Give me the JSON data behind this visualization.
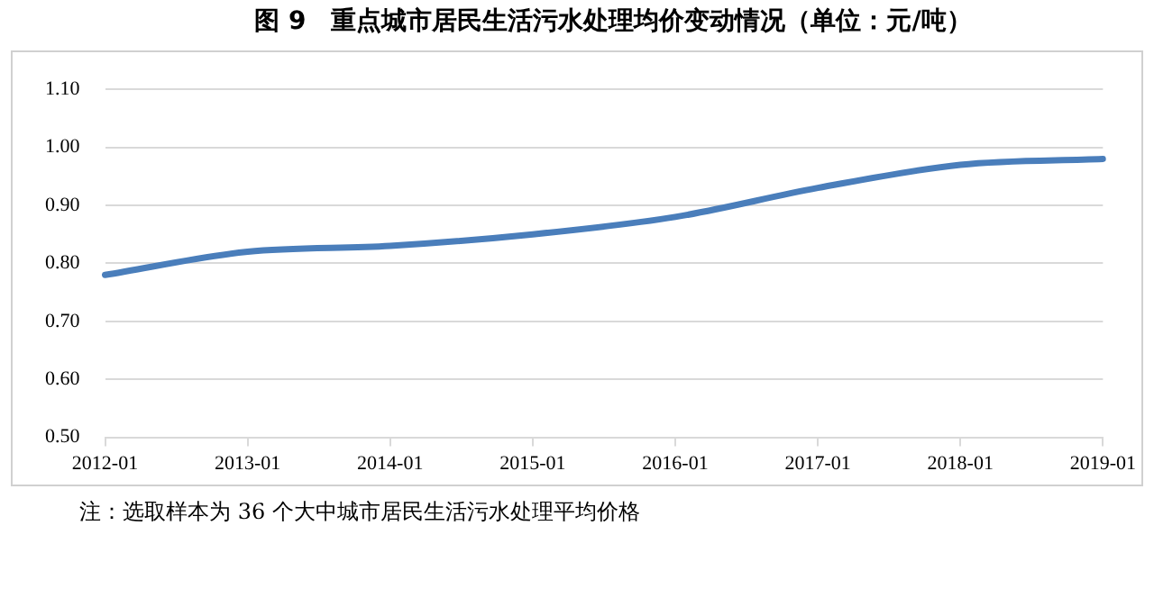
{
  "chart_data": {
    "type": "line",
    "title": "图 9　重点城市居民生活污水处理均价变动情况（单位：元/吨）",
    "categories": [
      "2012-01",
      "2013-01",
      "2014-01",
      "2015-01",
      "2016-01",
      "2017-01",
      "2018-01",
      "2019-01"
    ],
    "series": [
      {
        "color": "#4a7ebb",
        "values": [
          0.78,
          0.82,
          0.83,
          0.85,
          0.88,
          0.93,
          0.97,
          0.98
        ]
      }
    ],
    "ylim": [
      0.5,
      1.1
    ],
    "yticks": [
      {
        "value": 0.5,
        "label": "0.50"
      },
      {
        "value": 0.6,
        "label": "0.60"
      },
      {
        "value": 0.7,
        "label": "0.70"
      },
      {
        "value": 0.8,
        "label": "0.80"
      },
      {
        "value": 0.9,
        "label": "0.90"
      },
      {
        "value": 1.0,
        "label": "1.00"
      },
      {
        "value": 1.1,
        "label": "1.10"
      }
    ],
    "grid": "y",
    "legend": false,
    "marker": "none",
    "line_style": "solid",
    "annotations": [
      "注：选取样本为 36 个大中城市居民生活污水处理平均价格"
    ]
  }
}
